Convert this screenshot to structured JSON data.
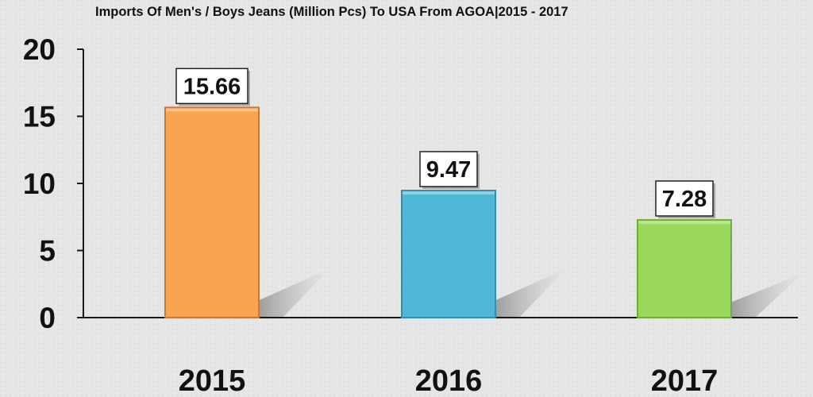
{
  "chart_data": {
    "type": "bar",
    "title": "Imports Of Men's / Boys Jeans (Million Pcs) To USA From AGOA|2015 - 2017",
    "xlabel": "",
    "ylabel": "",
    "categories": [
      "2015",
      "2016",
      "2017"
    ],
    "values": [
      15.66,
      9.47,
      7.28
    ],
    "value_labels": [
      "15.66",
      "9.47",
      "7.28"
    ],
    "ylim": [
      0,
      20
    ],
    "yticks": [
      0,
      5,
      10,
      15,
      20
    ],
    "ytick_labels": [
      "0",
      "5",
      "10",
      "15",
      "20"
    ],
    "grid": false,
    "legend": "none",
    "colors": [
      "#F9A54F",
      "#4FB8D6",
      "#99D85A"
    ],
    "bar_border_colors": [
      "#C8793A",
      "#2F8FAD",
      "#6FAE3A"
    ],
    "axis_color": "#1a1a1a",
    "background": "#e6e6e6"
  }
}
